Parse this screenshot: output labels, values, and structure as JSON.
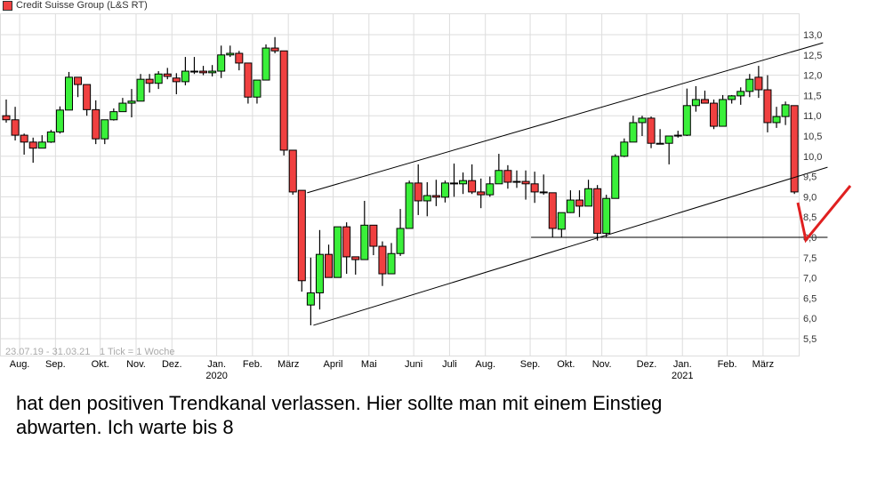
{
  "chart_data": {
    "type": "candlestick",
    "title": "Credit Suisse Group (L&S RT)",
    "range_label": "23.07.19 - 31.03.21",
    "tick_label": "1 Tick = 1 Woche",
    "ylim": [
      5.3,
      13.3
    ],
    "yticks": [
      "13,0",
      "12,5",
      "12,0",
      "11,5",
      "11,0",
      "10,5",
      "10,0",
      "9,5",
      "9,0",
      "8,5",
      "8,0",
      "7,5",
      "7,0",
      "6,5",
      "6,0",
      "5,5"
    ],
    "ytick_values": [
      13.0,
      12.5,
      12.0,
      11.5,
      11.0,
      10.5,
      10.0,
      9.5,
      9.0,
      8.5,
      8.0,
      7.5,
      7.0,
      6.5,
      6.0,
      5.5
    ],
    "xticks": [
      {
        "label": "Aug.",
        "week": 1
      },
      {
        "label": "Sep.",
        "week": 5
      },
      {
        "label": "Okt.",
        "week": 10
      },
      {
        "label": "Nov.",
        "week": 14
      },
      {
        "label": "Dez.",
        "week": 18
      },
      {
        "label": "Jan.",
        "week": 23,
        "year": "2020"
      },
      {
        "label": "Feb.",
        "week": 27
      },
      {
        "label": "März",
        "week": 31
      },
      {
        "label": "April",
        "week": 36
      },
      {
        "label": "Mai",
        "week": 40
      },
      {
        "label": "Juni",
        "week": 45
      },
      {
        "label": "Juli",
        "week": 49
      },
      {
        "label": "Aug.",
        "week": 53
      },
      {
        "label": "Sep.",
        "week": 58
      },
      {
        "label": "Okt.",
        "week": 62
      },
      {
        "label": "Nov.",
        "week": 66
      },
      {
        "label": "Dez.",
        "week": 71
      },
      {
        "label": "Jan.",
        "week": 75,
        "year": "2021"
      },
      {
        "label": "Feb.",
        "week": 80
      },
      {
        "label": "März",
        "week": 84
      }
    ],
    "grid": true,
    "up_color": "#3af03a",
    "down_color": "#f04040",
    "ohlc": [
      [
        11.0,
        11.4,
        10.83,
        10.9
      ],
      [
        10.9,
        11.22,
        10.39,
        10.52
      ],
      [
        10.52,
        10.56,
        10.04,
        10.35
      ],
      [
        10.35,
        10.46,
        9.84,
        10.2
      ],
      [
        10.2,
        10.52,
        10.2,
        10.35
      ],
      [
        10.35,
        10.65,
        10.33,
        10.6
      ],
      [
        10.6,
        11.23,
        10.56,
        11.14
      ],
      [
        11.14,
        12.08,
        11.14,
        11.95
      ],
      [
        11.95,
        11.95,
        11.46,
        11.77
      ],
      [
        11.77,
        11.77,
        11.0,
        11.15
      ],
      [
        11.15,
        11.38,
        10.3,
        10.43
      ],
      [
        10.43,
        10.9,
        10.3,
        10.9
      ],
      [
        10.9,
        11.18,
        10.88,
        11.1
      ],
      [
        11.1,
        11.44,
        11.1,
        11.31
      ],
      [
        11.31,
        11.66,
        10.96,
        11.36
      ],
      [
        11.36,
        12.03,
        11.36,
        11.9
      ],
      [
        11.9,
        12.03,
        11.57,
        11.8
      ],
      [
        11.8,
        12.1,
        11.66,
        12.03
      ],
      [
        12.03,
        12.18,
        11.9,
        11.97
      ],
      [
        11.93,
        12.05,
        11.53,
        11.84
      ],
      [
        11.84,
        12.45,
        11.75,
        12.1
      ],
      [
        12.1,
        12.45,
        12.03,
        12.08
      ],
      [
        12.1,
        12.23,
        12.0,
        12.06
      ],
      [
        12.06,
        12.25,
        11.97,
        12.1
      ],
      [
        12.1,
        12.73,
        11.93,
        12.5
      ],
      [
        12.5,
        12.73,
        12.45,
        12.54
      ],
      [
        12.54,
        12.6,
        12.12,
        12.3
      ],
      [
        12.3,
        12.3,
        11.3,
        11.46
      ],
      [
        11.46,
        11.88,
        11.3,
        11.88
      ],
      [
        11.88,
        12.76,
        11.88,
        12.67
      ],
      [
        12.67,
        12.94,
        12.54,
        12.6
      ],
      [
        12.6,
        12.6,
        10.02,
        10.15
      ],
      [
        10.15,
        10.15,
        9.05,
        9.12
      ],
      [
        9.16,
        9.16,
        6.66,
        6.93
      ],
      [
        6.33,
        7.5,
        5.83,
        6.63
      ],
      [
        6.63,
        8.18,
        6.22,
        7.58
      ],
      [
        7.58,
        7.82,
        7.01,
        7.01
      ],
      [
        7.01,
        8.26,
        7.01,
        8.26
      ],
      [
        8.26,
        8.37,
        7.1,
        7.52
      ],
      [
        7.52,
        7.52,
        7.08,
        7.45
      ],
      [
        7.45,
        8.9,
        7.45,
        8.3
      ],
      [
        8.3,
        8.3,
        7.56,
        7.78
      ],
      [
        7.78,
        7.9,
        6.8,
        7.1
      ],
      [
        7.1,
        7.86,
        7.1,
        7.6
      ],
      [
        7.6,
        8.7,
        7.54,
        8.22
      ],
      [
        8.22,
        9.4,
        8.22,
        9.34
      ],
      [
        9.34,
        9.8,
        8.55,
        8.9
      ],
      [
        8.9,
        9.36,
        8.52,
        9.03
      ],
      [
        9.03,
        9.42,
        8.77,
        8.99
      ],
      [
        8.99,
        9.4,
        8.86,
        9.34
      ],
      [
        9.34,
        9.82,
        9.0,
        9.32
      ],
      [
        9.32,
        9.6,
        9.07,
        9.4
      ],
      [
        9.4,
        9.8,
        9.07,
        9.12
      ],
      [
        9.12,
        9.45,
        8.72,
        9.05
      ],
      [
        9.05,
        9.5,
        9.0,
        9.32
      ],
      [
        9.32,
        10.06,
        9.32,
        9.65
      ],
      [
        9.65,
        9.78,
        9.2,
        9.36
      ],
      [
        9.36,
        9.65,
        9.22,
        9.38
      ],
      [
        9.38,
        9.65,
        8.93,
        9.32
      ],
      [
        9.32,
        9.62,
        8.85,
        9.12
      ],
      [
        9.12,
        9.55,
        9.05,
        9.1
      ],
      [
        9.1,
        9.1,
        8.0,
        8.22
      ],
      [
        8.2,
        8.61,
        8.0,
        8.61
      ],
      [
        8.61,
        9.16,
        8.6,
        8.92
      ],
      [
        8.92,
        9.16,
        8.5,
        8.77
      ],
      [
        8.77,
        9.42,
        8.77,
        9.2
      ],
      [
        9.2,
        9.29,
        7.92,
        8.1
      ],
      [
        8.1,
        9.05,
        8.0,
        8.96
      ],
      [
        8.96,
        10.05,
        8.96,
        10.0
      ],
      [
        10.0,
        10.44,
        9.98,
        10.35
      ],
      [
        10.35,
        11.0,
        10.35,
        10.83
      ],
      [
        10.83,
        11.0,
        10.5,
        10.94
      ],
      [
        10.94,
        10.98,
        10.2,
        10.32
      ],
      [
        10.32,
        10.67,
        10.3,
        10.32
      ],
      [
        10.32,
        10.5,
        9.8,
        10.5
      ],
      [
        10.5,
        10.63,
        10.46,
        10.52
      ],
      [
        10.52,
        11.67,
        10.5,
        11.25
      ],
      [
        11.25,
        11.73,
        11.1,
        11.4
      ],
      [
        11.4,
        11.62,
        11.31,
        11.31
      ],
      [
        11.31,
        11.4,
        10.67,
        10.74
      ],
      [
        10.74,
        11.51,
        10.77,
        11.4
      ],
      [
        11.4,
        11.51,
        11.3,
        11.49
      ],
      [
        11.49,
        11.7,
        11.27,
        11.6
      ],
      [
        11.6,
        12.03,
        11.46,
        11.9
      ],
      [
        11.95,
        12.23,
        11.44,
        11.64
      ],
      [
        11.64,
        12.0,
        10.59,
        10.83
      ],
      [
        10.83,
        11.22,
        10.7,
        10.98
      ],
      [
        10.98,
        11.35,
        10.77,
        11.27
      ],
      [
        11.25,
        11.25,
        9.07,
        9.12
      ]
    ],
    "trendlines": [
      {
        "name": "upper-channel",
        "from": [
          33.6,
          9.1
        ],
        "to": [
          91.2,
          12.8
        ]
      },
      {
        "name": "lower-channel",
        "from": [
          34.3,
          5.83
        ],
        "to": [
          91.7,
          9.73
        ]
      },
      {
        "name": "support-line",
        "from": [
          58.6,
          8.0
        ],
        "to": [
          91.7,
          8.0
        ]
      }
    ]
  },
  "comment": {
    "line1": "hat den positiven Trendkanal verlassen. Hier sollte man mit einem Einstieg",
    "line2": "abwarten. Ich warte bis 8"
  }
}
